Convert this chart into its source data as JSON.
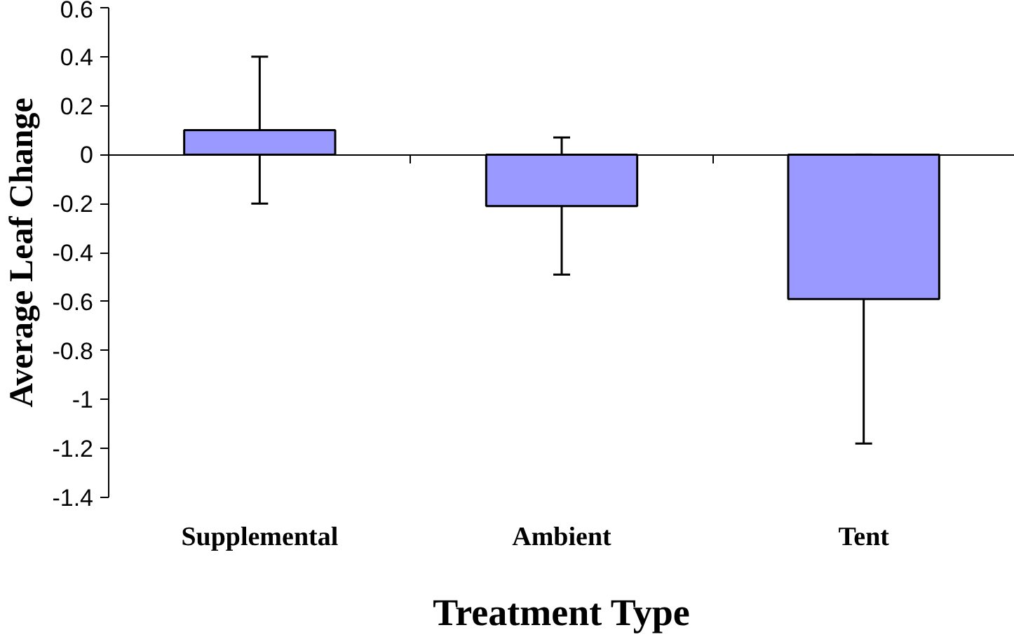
{
  "chart_data": {
    "type": "bar",
    "xlabel": "Treatment Type",
    "ylabel": "Average Leaf Change",
    "categories": [
      "Supplemental",
      "Ambient",
      "Tent"
    ],
    "values": [
      0.1,
      -0.21,
      -0.59
    ],
    "errors": [
      0.3,
      0.28,
      0.59
    ],
    "color": "#9999ff",
    "ylim": [
      -1.4,
      0.6
    ],
    "yticks": [
      -1.4,
      -1.2,
      -1,
      -0.8,
      -0.6,
      -0.4,
      -0.2,
      0,
      0.2,
      0.4,
      0.6
    ]
  }
}
